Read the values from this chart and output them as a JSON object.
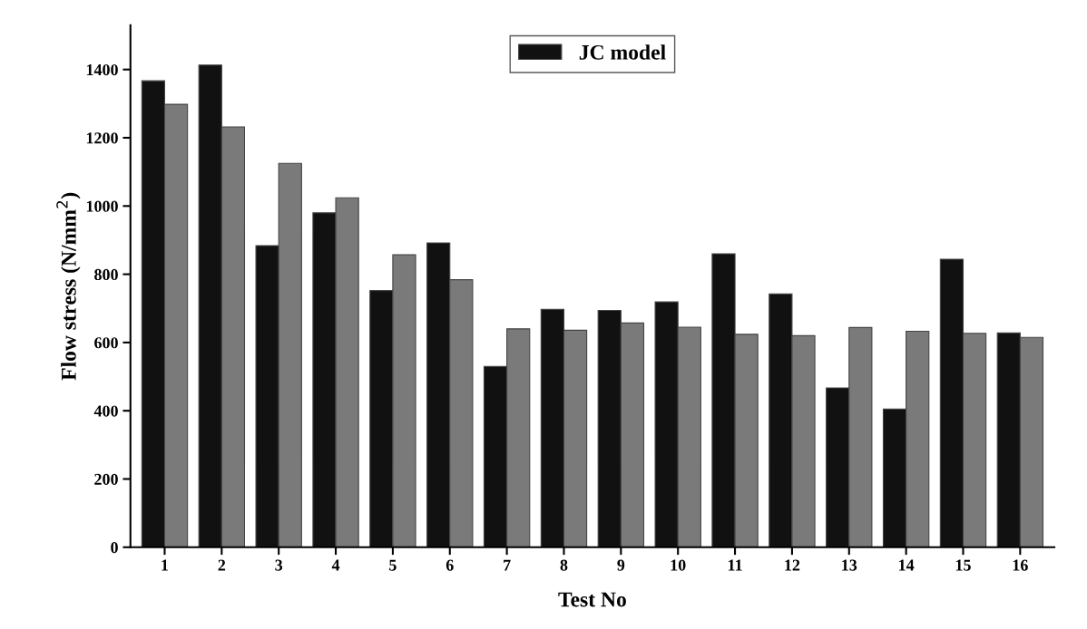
{
  "chart_data": {
    "type": "bar",
    "xlabel": "Test No",
    "ylabel": "Flow stress (N/mm$^{2}$)",
    "categories": [
      "1",
      "2",
      "3",
      "4",
      "5",
      "6",
      "7",
      "8",
      "9",
      "10",
      "11",
      "12",
      "13",
      "14",
      "15",
      "16"
    ],
    "series": [
      {
        "name": "JC model",
        "color": "#111111",
        "values": [
          1367,
          1413,
          884,
          980,
          752,
          892,
          530,
          697,
          694,
          719,
          860,
          742,
          467,
          405,
          844,
          628
        ]
      },
      {
        "color": "#7a7a7a",
        "values": [
          1298,
          1232,
          1125,
          1024,
          857,
          784,
          640,
          636,
          657,
          645,
          624,
          620,
          644,
          633,
          627,
          615
        ]
      }
    ],
    "ylim": [
      0,
      1530
    ],
    "yticks": [
      0,
      200,
      400,
      600,
      800,
      1000,
      1200,
      1400
    ],
    "grid": false,
    "legend": "top"
  }
}
